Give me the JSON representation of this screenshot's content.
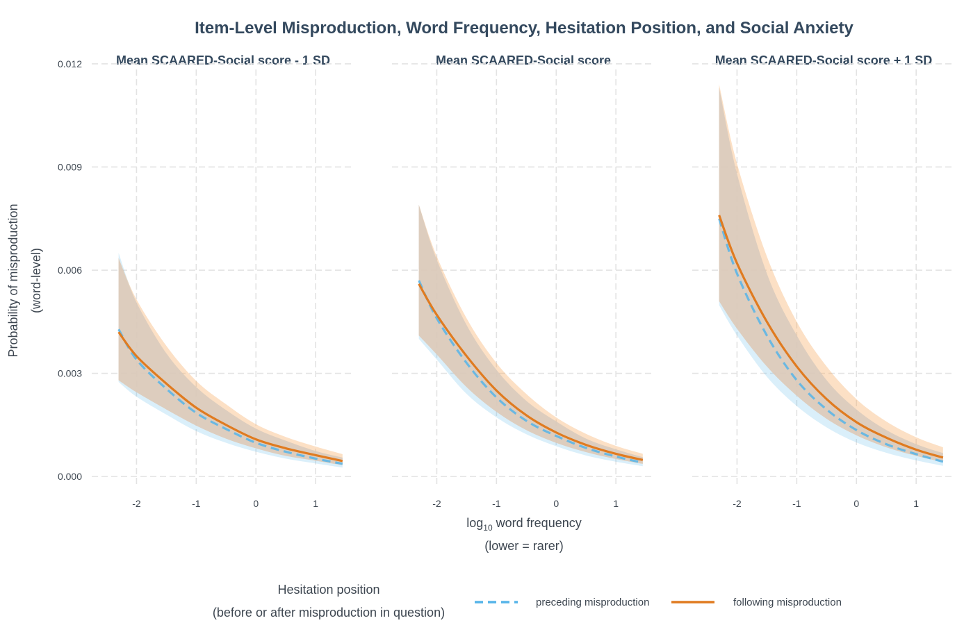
{
  "chart_data": {
    "type": "line",
    "title": "Item-Level Misproduction, Word Frequency, Hesitation Position, and Social Anxiety",
    "xlabel": "log10 word frequency",
    "xlabel_line2": "(lower = rarer)",
    "ylabel_line1": "Probability of misproduction",
    "ylabel_line2": "(word-level)",
    "xlim": [
      -2.75,
      1.65
    ],
    "ylim": [
      -0.00028,
      0.0122
    ],
    "x_ticks": [
      -2,
      -1,
      0,
      1
    ],
    "x_tick_labels": [
      "-2",
      "-1",
      "0",
      "1"
    ],
    "y_ticks": [
      0.0,
      0.003,
      0.006,
      0.009,
      0.012
    ],
    "y_tick_labels": [
      "0.000",
      "0.003",
      "0.006",
      "0.009",
      "0.012"
    ],
    "grid": true,
    "legend": {
      "position": "bottom",
      "title_line1": "Hesitation position",
      "title_line2": "(before or after misproduction in question)",
      "entries": [
        "preceding misproduction",
        "following misproduction"
      ]
    },
    "colors": {
      "preceding_line": "#56b4e9",
      "preceding_ribbon": "#56b4e9",
      "following_line": "#e07b20",
      "following_ribbon": "#f5a55a",
      "overlap": "#dccbbd"
    },
    "x": [
      -2.3,
      -2.0,
      -1.5,
      -1.0,
      -0.5,
      0.0,
      0.5,
      1.0,
      1.45
    ],
    "panels": [
      {
        "title": "Mean SCAARED-Social score - 1 SD",
        "series": [
          {
            "name": "preceding misproduction",
            "y": [
              0.00428,
              0.0034,
              0.00255,
              0.00185,
              0.00138,
              0.00098,
              0.00072,
              0.00052,
              0.00037
            ],
            "lower": [
              0.00275,
              0.00232,
              0.0018,
              0.00132,
              0.00098,
              0.00072,
              0.00052,
              0.00038,
              0.00026
            ],
            "upper": [
              0.0065,
              0.00506,
              0.00358,
              0.0026,
              0.00193,
              0.00139,
              0.00104,
              0.00074,
              0.00055
            ]
          },
          {
            "name": "following misproduction",
            "y": [
              0.0042,
              0.0035,
              0.0027,
              0.002,
              0.0015,
              0.00108,
              0.00082,
              0.00062,
              0.00045
            ],
            "lower": [
              0.0028,
              0.00245,
              0.00195,
              0.00148,
              0.0011,
              0.00082,
              0.0006,
              0.00046,
              0.00033
            ],
            "upper": [
              0.00635,
              0.00515,
              0.0038,
              0.00278,
              0.0021,
              0.00152,
              0.00115,
              0.00087,
              0.00065
            ]
          }
        ]
      },
      {
        "title": "Mean SCAARED-Social score",
        "series": [
          {
            "name": "preceding misproduction",
            "y": [
              0.0057,
              0.0046,
              0.0033,
              0.0023,
              0.00162,
              0.00118,
              0.00083,
              0.00058,
              0.0004
            ],
            "lower": [
              0.004,
              0.0034,
              0.0024,
              0.00172,
              0.00123,
              0.00088,
              0.00061,
              0.00043,
              0.0003
            ],
            "upper": [
              0.0079,
              0.0063,
              0.0044,
              0.0031,
              0.0022,
              0.0016,
              0.0011,
              0.00079,
              0.00056
            ]
          },
          {
            "name": "following misproduction",
            "y": [
              0.0056,
              0.0047,
              0.0035,
              0.0025,
              0.00178,
              0.00128,
              0.00092,
              0.00066,
              0.00048
            ],
            "lower": [
              0.0041,
              0.00355,
              0.0026,
              0.00188,
              0.00135,
              0.00098,
              0.00071,
              0.00051,
              0.00037
            ],
            "upper": [
              0.0079,
              0.0064,
              0.0046,
              0.0033,
              0.0024,
              0.00172,
              0.00124,
              0.00089,
              0.00066
            ]
          }
        ]
      },
      {
        "title": "Mean SCAARED-Social score + 1 SD",
        "series": [
          {
            "name": "preceding misproduction",
            "y": [
              0.0075,
              0.0059,
              0.0041,
              0.0028,
              0.00195,
              0.00135,
              0.00094,
              0.00065,
              0.00043
            ],
            "lower": [
              0.00498,
              0.0041,
              0.0029,
              0.00205,
              0.00143,
              0.00099,
              0.00069,
              0.00047,
              0.00031
            ],
            "upper": [
              0.0113,
              0.0088,
              0.0059,
              0.0041,
              0.0028,
              0.00195,
              0.00135,
              0.00094,
              0.00068
            ]
          },
          {
            "name": "following misproduction",
            "y": [
              0.0076,
              0.0062,
              0.0045,
              0.0032,
              0.00225,
              0.00158,
              0.00113,
              0.00078,
              0.00055
            ],
            "lower": [
              0.0051,
              0.0043,
              0.0032,
              0.00235,
              0.00168,
              0.0012,
              0.00085,
              0.0006,
              0.00042
            ],
            "upper": [
              0.0114,
              0.0091,
              0.0064,
              0.0045,
              0.0032,
              0.00225,
              0.0016,
              0.00114,
              0.00085
            ]
          }
        ]
      }
    ]
  }
}
